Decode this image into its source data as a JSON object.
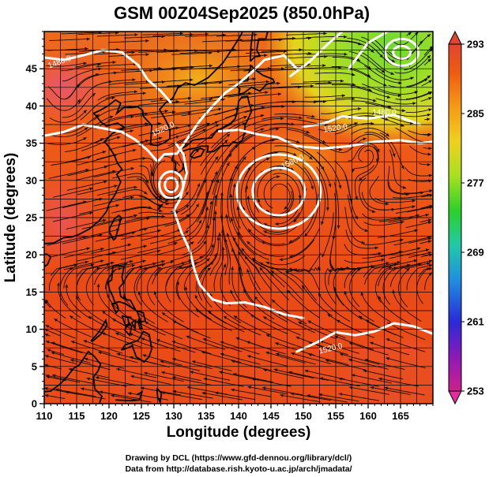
{
  "title": "GSM 00Z04Sep2025 (850.0hPa)",
  "xlabel": "Longitude (degrees)",
  "ylabel": "Latitude (degrees)",
  "credit_line1": "Drawing by DCL (https://www.gfd-dennou.org/library/dcl/)",
  "credit_line2": "Data from http://database.rish.kyoto-u.ac.jp/arch/jmadata/",
  "map": {
    "lon_range": [
      110,
      170
    ],
    "lat_range": [
      0,
      50
    ],
    "lon_ticks": [
      "110",
      "115",
      "120",
      "125",
      "130",
      "135",
      "140",
      "145",
      "150",
      "155",
      "160",
      "165"
    ],
    "lat_ticks": [
      "0",
      "5",
      "10",
      "15",
      "20",
      "25",
      "30",
      "35",
      "40",
      "45"
    ],
    "grid": true,
    "field": "temperature (K)",
    "overlay": "streamlines"
  },
  "colorbar": {
    "ticks": [
      "293",
      "285",
      "277",
      "269",
      "261",
      "253"
    ],
    "min": 253,
    "max": 293,
    "colors": [
      "#d0208a",
      "#8a1ab8",
      "#2a2ad8",
      "#1f8fe0",
      "#22c8a8",
      "#2cd02a",
      "#a8e020",
      "#f0d020",
      "#f59a16",
      "#ef5a12",
      "#e04530"
    ]
  },
  "contour_labels": [
    "1480.0",
    "1520.0",
    "1560.0",
    "1520.0",
    "1480.0",
    "1520.0",
    "1520.0"
  ]
}
